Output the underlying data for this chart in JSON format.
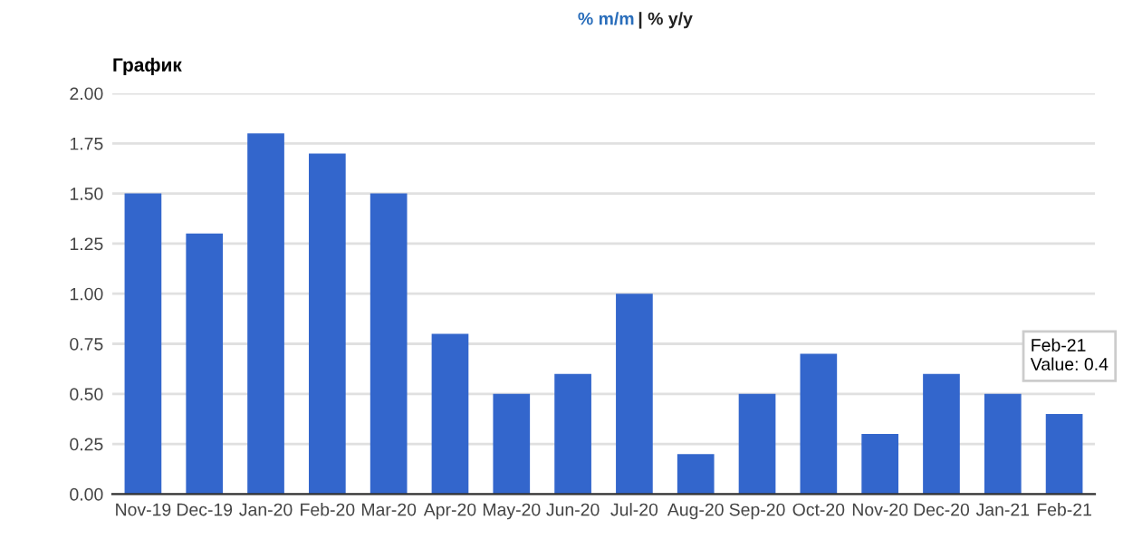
{
  "chart_data": {
    "type": "bar",
    "title": "График",
    "categories": [
      "Nov-19",
      "Dec-19",
      "Jan-20",
      "Feb-20",
      "Mar-20",
      "Apr-20",
      "May-20",
      "Jun-20",
      "Jul-20",
      "Aug-20",
      "Sep-20",
      "Oct-20",
      "Nov-20",
      "Dec-20",
      "Jan-21",
      "Feb-21"
    ],
    "values": [
      1.5,
      1.3,
      1.8,
      1.7,
      1.5,
      0.8,
      0.5,
      0.6,
      1.0,
      0.2,
      0.5,
      0.7,
      0.3,
      0.6,
      0.5,
      0.4
    ],
    "color": "#3366cc",
    "ylim": [
      0,
      2.0
    ],
    "yticks": [
      {
        "value": 0,
        "label": "0.00"
      },
      {
        "value": 0.25,
        "label": "0.25"
      },
      {
        "value": 0.5,
        "label": "0.50"
      },
      {
        "value": 0.75,
        "label": "0.75"
      },
      {
        "value": 1.0,
        "label": "1.00"
      },
      {
        "value": 1.25,
        "label": "1.25"
      },
      {
        "value": 1.5,
        "label": "1.50"
      },
      {
        "value": 1.75,
        "label": "1.75"
      },
      {
        "value": 2.0,
        "label": "2.00"
      }
    ],
    "grid": "y",
    "annotations": [
      "% m/m",
      "| % y/y",
      {
        "text": "Feb-21\nValue: 0.4",
        "x": "Feb-21",
        "y": 0.4
      }
    ]
  }
}
